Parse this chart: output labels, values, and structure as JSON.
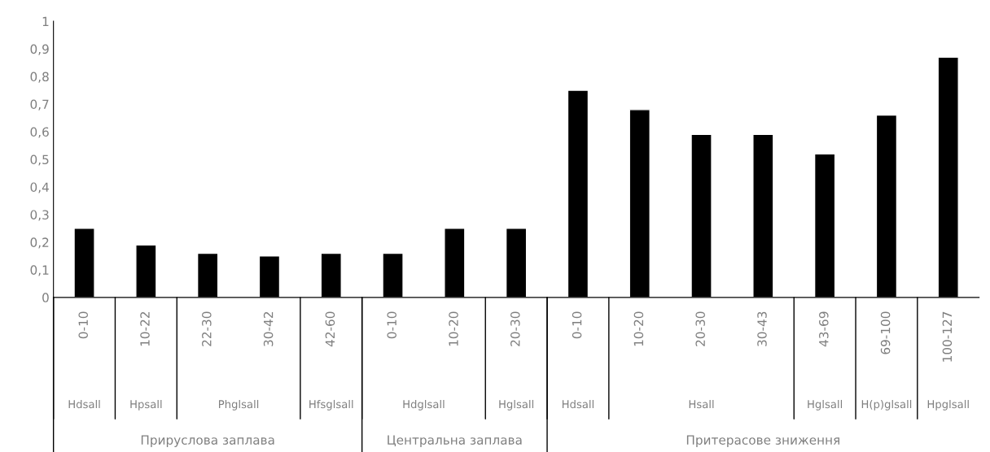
{
  "chart_data": {
    "type": "bar",
    "categories": [
      "0-10",
      "10-22",
      "22-30",
      "30-42",
      "42-60",
      "0-10",
      "10-20",
      "20-30",
      "0-10",
      "10-20",
      "20-30",
      "30-43",
      "43-69",
      "69-100",
      "100-127"
    ],
    "values": [
      0.25,
      0.19,
      0.16,
      0.15,
      0.16,
      0.16,
      0.25,
      0.25,
      0.75,
      0.68,
      0.59,
      0.59,
      0.52,
      0.66,
      0.87
    ],
    "color": "#000000",
    "ylim": [
      0,
      1
    ],
    "yticks": [
      0,
      {
        "value": 0.1,
        "label": "0,1"
      },
      {
        "value": 0.2,
        "label": "0,2"
      },
      {
        "value": 0.3,
        "label": "0,3"
      },
      {
        "value": 0.4,
        "label": "0,4"
      },
      {
        "value": 0.5,
        "label": "0,5"
      },
      {
        "value": 0.6,
        "label": "0,6"
      },
      {
        "value": 0.7,
        "label": "0,7"
      },
      {
        "value": 0.8,
        "label": "0,8"
      },
      {
        "value": 0.9,
        "label": "0,9"
      },
      1
    ],
    "grid": false,
    "annotations": [
      "Hdsall",
      "Hpsall",
      "Phglsall",
      "Hfsglsall",
      "Hdglsall",
      "Hglsall",
      "Hdsall",
      "Hsall",
      "Hglsall",
      "H(p)glsall",
      "Hpglsall",
      "Прируслова заплава",
      "Центральна заплава",
      "Притерасове зниження"
    ]
  }
}
